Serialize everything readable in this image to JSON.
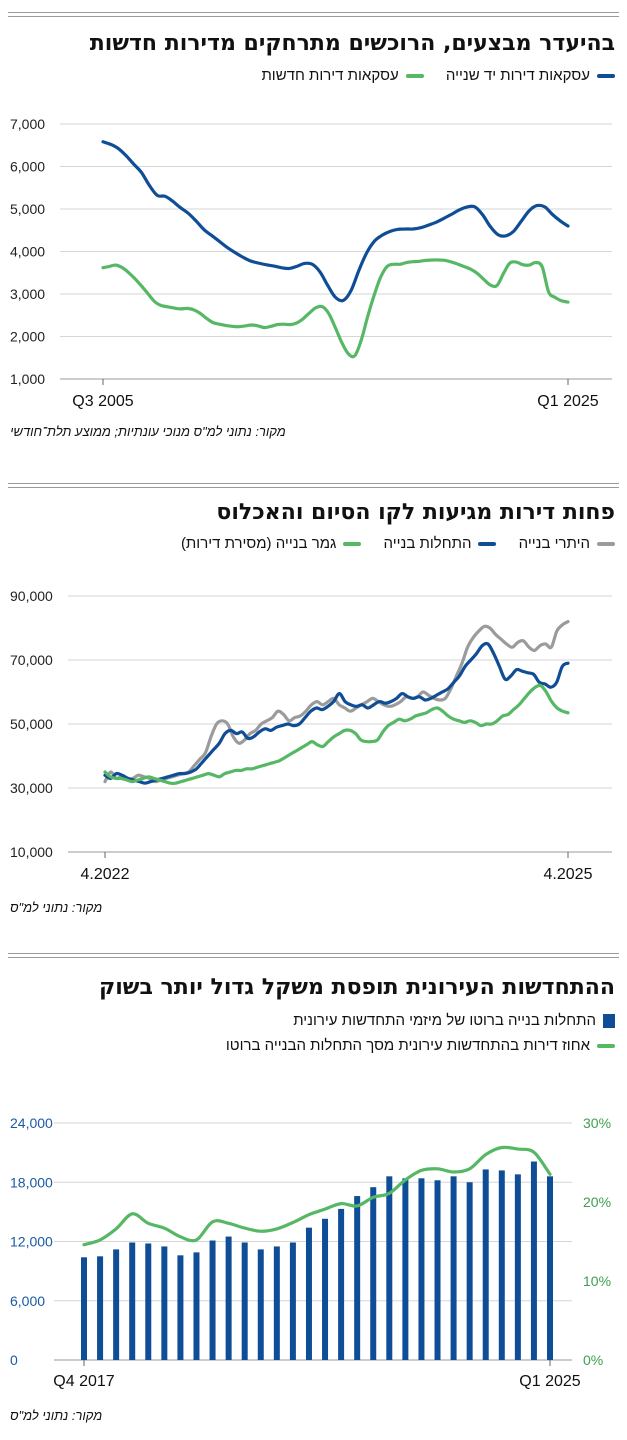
{
  "panels": [
    {
      "title": "בהיעדר מבצעים, הרוכשים מתרחקים מדירות חדשות",
      "legend": [
        {
          "label": "עסקאות דירות יד שנייה",
          "color": "#0f4e96"
        },
        {
          "label": "עסקאות דירות חדשות",
          "color": "#56b765"
        }
      ],
      "source": "מקור: נתוני למ\"ס מנוכי עונתיות; ממוצע תלת־חודשי"
    },
    {
      "title": "פחות דירות מגיעות לקו הסיום והאכלוס",
      "legend": [
        {
          "label": "היתרי בנייה",
          "color": "#9b9b9b"
        },
        {
          "label": "התחלות בנייה",
          "color": "#0f4e96"
        },
        {
          "label": "גמר בנייה (מסירת דירות)",
          "color": "#56b765"
        }
      ],
      "source": "מקור: נתוני למ\"ס"
    },
    {
      "title": "ההתחדשות העירונית תופסת משקל גדול יותר בשוק",
      "legend": [
        {
          "label": "התחלות בנייה ברוטו של מיזמי התחדשות עירונית",
          "color": "#0f4e96",
          "kind": "box"
        },
        {
          "label": "אחוז דירות בהתחדשות עירונית מסך התחלות הבנייה ברוטו",
          "color": "#56b765",
          "kind": "line"
        }
      ],
      "source": "מקור: נתוני למ\"ס"
    }
  ],
  "chart_data": [
    {
      "type": "line",
      "x_tick_labels": [
        "Q3 2005",
        "Q1 2025"
      ],
      "y_ticks": [
        "1,000",
        "2,000",
        "3,000",
        "4,000",
        "5,000",
        "6,000",
        "7,000"
      ],
      "ylim": [
        1000,
        7000
      ],
      "grid": true,
      "series": [
        {
          "name": "עסקאות דירות יד שנייה",
          "color": "#0f4e96",
          "values": [
            6580,
            6520,
            6420,
            6250,
            6050,
            5850,
            5550,
            5320,
            5300,
            5180,
            5030,
            4900,
            4720,
            4520,
            4380,
            4240,
            4100,
            3980,
            3870,
            3780,
            3730,
            3690,
            3660,
            3620,
            3600,
            3650,
            3720,
            3700,
            3520,
            3200,
            2920,
            2850,
            3080,
            3550,
            3960,
            4240,
            4380,
            4470,
            4520,
            4530,
            4530,
            4560,
            4620,
            4690,
            4780,
            4880,
            4980,
            5050,
            5050,
            4860,
            4580,
            4390,
            4370,
            4480,
            4720,
            4960,
            5080,
            5050,
            4870,
            4720,
            4600
          ]
        },
        {
          "name": "עסקאות דירות חדשות",
          "color": "#56b765",
          "values": [
            3620,
            3650,
            3680,
            3620,
            3500,
            3350,
            3180,
            3000,
            2820,
            2730,
            2700,
            2670,
            2650,
            2660,
            2630,
            2550,
            2430,
            2330,
            2290,
            2260,
            2240,
            2230,
            2250,
            2270,
            2250,
            2210,
            2240,
            2280,
            2290,
            2280,
            2320,
            2420,
            2560,
            2680,
            2700,
            2530,
            2200,
            1850,
            1590,
            1550,
            1920,
            2480,
            2980,
            3400,
            3650,
            3700,
            3700,
            3740,
            3760,
            3770,
            3790,
            3800,
            3800,
            3790,
            3750,
            3700,
            3640,
            3580,
            3480,
            3340,
            3210,
            3200,
            3480,
            3730,
            3750,
            3690,
            3680,
            3740,
            3640,
            3050,
            2920,
            2840,
            2810
          ]
        }
      ]
    },
    {
      "type": "line",
      "x_tick_labels": [
        "4.2022",
        "4.2025"
      ],
      "y_ticks": [
        "10,000",
        "30,000",
        "50,000",
        "70,000",
        "90,000"
      ],
      "ylim": [
        10000,
        90000
      ],
      "grid": true,
      "series": [
        {
          "name": "היתרי בנייה",
          "color": "#9b9b9b",
          "values": [
            32000,
            35000,
            33000,
            33500,
            32500,
            33000,
            34000,
            33500,
            33000,
            32000,
            32500,
            33000,
            33500,
            34000,
            34500,
            35000,
            37000,
            39000,
            41000,
            46000,
            50000,
            51000,
            50000,
            46000,
            44000,
            45000,
            47000,
            48000,
            50000,
            51000,
            52000,
            54000,
            53000,
            51000,
            52000,
            52500,
            54000,
            56000,
            57000,
            56000,
            57000,
            58000,
            56000,
            55000,
            54000,
            55000,
            56000,
            57000,
            58000,
            57000,
            56000,
            55500,
            56000,
            57000,
            58500,
            58000,
            58500,
            60000,
            59000,
            58000,
            57500,
            58000,
            61000,
            65000,
            69000,
            74000,
            77000,
            79000,
            80500,
            80000,
            78000,
            76500,
            75000,
            74000,
            75500,
            76000,
            74000,
            73000,
            74500,
            75000,
            74000,
            79000,
            81000,
            82000
          ]
        },
        {
          "name": "התחלות בנייה",
          "color": "#0f4e96",
          "values": [
            34000,
            33000,
            34500,
            34000,
            33000,
            32500,
            32000,
            31500,
            32000,
            32500,
            33000,
            33500,
            34000,
            34500,
            34500,
            35000,
            36000,
            38000,
            40000,
            42000,
            44000,
            47000,
            48000,
            47000,
            47500,
            45500,
            46000,
            47500,
            48500,
            48000,
            49000,
            49500,
            50000,
            49500,
            50000,
            52000,
            54000,
            55000,
            54500,
            55500,
            57000,
            59500,
            57000,
            56000,
            55500,
            56000,
            55000,
            56000,
            57000,
            56500,
            57000,
            58000,
            59500,
            58500,
            58000,
            58500,
            57500,
            58000,
            59000,
            60000,
            61000,
            63000,
            65000,
            68000,
            70000,
            72000,
            74500,
            75000,
            72000,
            68000,
            64000,
            65000,
            67000,
            66500,
            66000,
            65500,
            63000,
            62500,
            61500,
            63000,
            68000,
            69000
          ]
        },
        {
          "name": "גמר בנייה (מסירת דירות)",
          "color": "#56b765",
          "values": [
            35000,
            33500,
            33000,
            33000,
            32500,
            32000,
            32500,
            33000,
            33500,
            33000,
            32500,
            32000,
            31500,
            31500,
            32000,
            32500,
            33000,
            33500,
            34000,
            34500,
            34000,
            33500,
            34500,
            35000,
            35500,
            35500,
            36000,
            36000,
            36500,
            37000,
            37500,
            38000,
            38500,
            39500,
            40500,
            41500,
            42500,
            43500,
            44500,
            43500,
            43000,
            44500,
            46000,
            47000,
            48000,
            48000,
            47000,
            45000,
            44500,
            44500,
            45000,
            47500,
            49500,
            50500,
            51500,
            51000,
            51500,
            52500,
            53000,
            53500,
            54500,
            55000,
            54000,
            52500,
            51500,
            51000,
            50500,
            51000,
            50500,
            49500,
            50000,
            50000,
            51000,
            52500,
            53000,
            54500,
            56000,
            58000,
            60000,
            61500,
            62000,
            60000,
            57000,
            55000,
            54000,
            53500
          ]
        }
      ]
    },
    {
      "type": "bar",
      "x_tick_labels": [
        "Q4 2017",
        "Q1 2025"
      ],
      "y_left_ticks": [
        "0",
        "6,000",
        "12,000",
        "18,000",
        "24,000"
      ],
      "y_right_ticks": [
        "0%",
        "10%",
        "20%",
        "30%"
      ],
      "ylim_left": [
        0,
        24000
      ],
      "ylim_right": [
        0,
        30
      ],
      "grid": true,
      "series": [
        {
          "name": "התחלות בנייה ברוטו של מיזמי התחדשות עירונית",
          "type": "bar",
          "axis": "left",
          "color": "#0f4e96",
          "values": [
            10400,
            10500,
            11200,
            11900,
            11800,
            11500,
            10600,
            10900,
            12100,
            12500,
            11900,
            11200,
            11500,
            11900,
            13400,
            14300,
            15300,
            16600,
            17500,
            18600,
            18400,
            18400,
            18200,
            18600,
            18000,
            19300,
            19200,
            18800,
            20100,
            18600
          ]
        },
        {
          "name": "אחוז דירות בהתחדשות עירונית מסך התחלות הבנייה ברוטו",
          "type": "line",
          "axis": "right",
          "color": "#56b765",
          "values": [
            14.6,
            15.2,
            16.6,
            18.5,
            17.3,
            16.7,
            15.6,
            15.2,
            17.5,
            17.3,
            16.7,
            16.3,
            16.6,
            17.4,
            18.4,
            19.1,
            19.8,
            19.5,
            20.6,
            21.1,
            22.8,
            24.0,
            24.2,
            23.8,
            24.2,
            26.0,
            26.9,
            26.7,
            26.3,
            23.5
          ]
        }
      ]
    }
  ]
}
